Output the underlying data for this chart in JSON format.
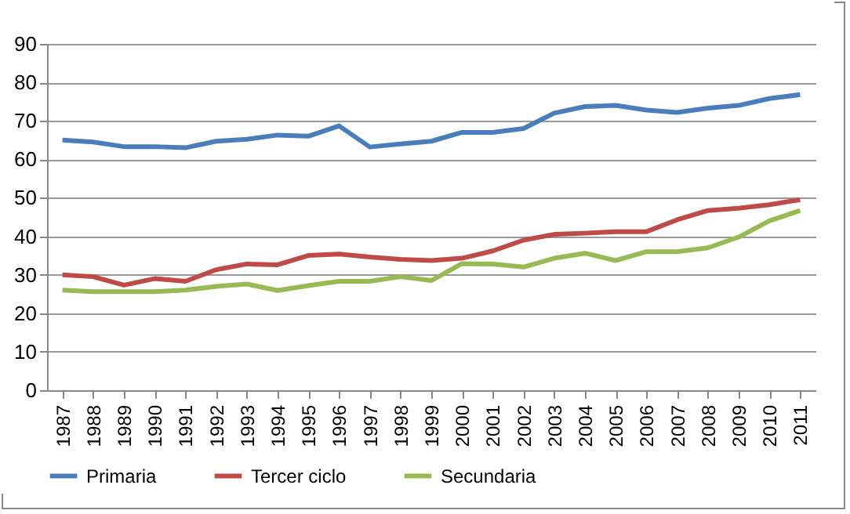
{
  "chart_data": {
    "type": "line",
    "categories": [
      "1987",
      "1988",
      "1989",
      "1990",
      "1991",
      "1992",
      "1993",
      "1994",
      "1995",
      "1996",
      "1997",
      "1998",
      "1999",
      "2000",
      "2001",
      "2002",
      "2003",
      "2004",
      "2005",
      "2006",
      "2007",
      "2008",
      "2009",
      "2010",
      "2011"
    ],
    "series": [
      {
        "name": "Primaria",
        "color": "#4a7ebb",
        "values": [
          65,
          64.5,
          63.3,
          63.3,
          63,
          64.7,
          65.2,
          66.3,
          66,
          68.7,
          63.2,
          64,
          64.7,
          67,
          67,
          68,
          72,
          73.7,
          74,
          72.8,
          72.2,
          73.3,
          74,
          75.8,
          76.8
        ]
      },
      {
        "name": "Tercer ciclo",
        "color": "#be4b48",
        "values": [
          30,
          29.5,
          27.3,
          29,
          28.3,
          31.3,
          32.8,
          32.6,
          35,
          35.4,
          34.6,
          34,
          33.7,
          34.3,
          36.2,
          39,
          40.5,
          40.8,
          41.2,
          41.2,
          44.3,
          46.7,
          47.3,
          48.2,
          49.5
        ]
      },
      {
        "name": "Secundaria",
        "color": "#98b954",
        "values": [
          26,
          25.6,
          25.6,
          25.6,
          26,
          27,
          27.6,
          25.9,
          27.2,
          28.3,
          28.3,
          29.5,
          28.5,
          32.9,
          32.8,
          32,
          34.3,
          35.6,
          33.7,
          36,
          36,
          37,
          39.8,
          44,
          46.7
        ]
      }
    ],
    "ylim": [
      0,
      90
    ],
    "yticks": [
      0,
      10,
      20,
      30,
      40,
      50,
      60,
      70,
      80,
      90
    ],
    "grid": "y",
    "legend": "bottom",
    "marker": "none",
    "line_style": "solid"
  }
}
